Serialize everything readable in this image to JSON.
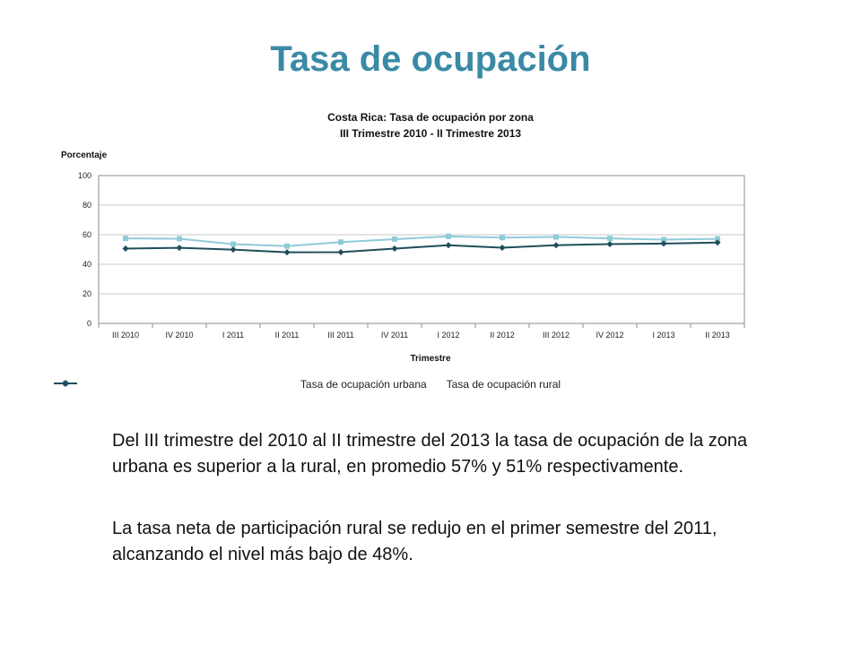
{
  "slide": {
    "title": "Tasa de ocupación",
    "paragraphs": [
      "Del III trimestre del 2010 al II trimestre del 2013 la tasa de ocupación de la zona urbana es superior a la rural, en promedio 57% y 51% respectivamente.",
      "La tasa neta de participación rural se redujo en el primer semestre del 2011, alcanzando el nivel más bajo de 48%."
    ]
  },
  "chart_data": {
    "type": "line",
    "title": "Costa Rica: Tasa de ocupación por zona",
    "subtitle": "III Trimestre 2010 - II Trimestre 2013",
    "xlabel": "Trimestre",
    "ylabel": "Porcentaje",
    "ylim": [
      0,
      100
    ],
    "yticks": [
      0,
      20,
      40,
      60,
      80,
      100
    ],
    "grid": true,
    "legend_position": "bottom",
    "categories": [
      "III 2010",
      "IV 2010",
      "I 2011",
      "II 2011",
      "III 2011",
      "IV 2011",
      "I 2012",
      "II 2012",
      "III 2012",
      "IV 2012",
      "I 2013",
      "II 2013"
    ],
    "series": [
      {
        "name": "Tasa de ocupación urbana",
        "color": "#8fcbd8",
        "marker": "square",
        "values": [
          57.5,
          57.3,
          53.6,
          52.3,
          55.0,
          57.0,
          58.9,
          58.0,
          58.5,
          57.5,
          56.7,
          57.2
        ]
      },
      {
        "name": "Tasa de ocupación rural",
        "color": "#1f4e5a",
        "marker": "diamond",
        "values": [
          50.6,
          51.1,
          49.9,
          48.1,
          48.2,
          50.6,
          52.9,
          51.2,
          52.9,
          53.6,
          54.0,
          54.7
        ]
      }
    ]
  }
}
